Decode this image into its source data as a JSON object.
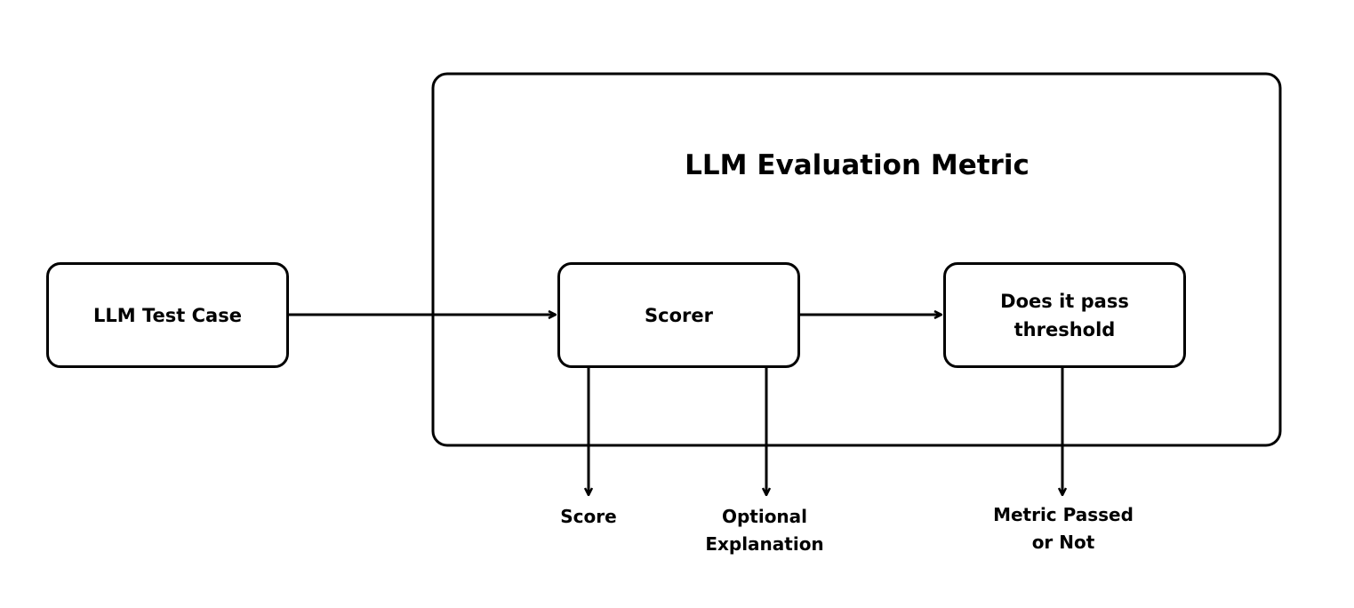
{
  "container": {
    "title": "LLM Evaluation Metric"
  },
  "nodes": {
    "test_case": "LLM Test Case",
    "scorer": "Scorer",
    "threshold": "Does it pass threshold"
  },
  "outputs": {
    "score": "Score",
    "explanation": "Optional Explanation",
    "metric": "Metric Passed or Not"
  },
  "colors": {
    "stroke": "#000000",
    "background": "#ffffff"
  }
}
